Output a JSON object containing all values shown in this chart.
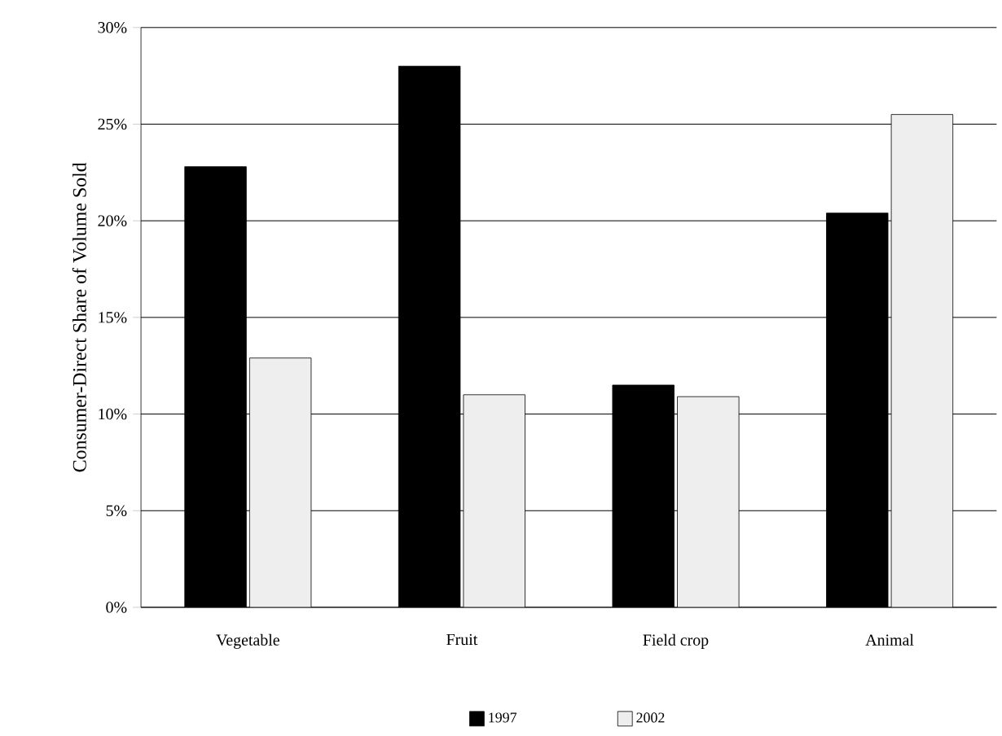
{
  "chart_data": {
    "type": "bar",
    "ylabel": "Consumer-Direct Share of Volume Sold",
    "categories": [
      "Vegetable",
      "Fruit",
      "Field crop",
      "Animal"
    ],
    "series": [
      {
        "name": "1997",
        "color": "#000000",
        "values": [
          22.8,
          28.0,
          11.5,
          20.4
        ]
      },
      {
        "name": "2002",
        "color": "#eeeeee",
        "values": [
          12.9,
          11.0,
          10.9,
          25.5
        ]
      }
    ],
    "ylim": [
      0,
      30
    ],
    "yticks": [
      {
        "value": 0,
        "label": "0%"
      },
      {
        "value": 5,
        "label": "5%"
      },
      {
        "value": 10,
        "label": "10%"
      },
      {
        "value": 15,
        "label": "15%"
      },
      {
        "value": 20,
        "label": "20%"
      },
      {
        "value": 25,
        "label": "25%"
      },
      {
        "value": 30,
        "label": "30%"
      }
    ],
    "grid": "y",
    "legend": "bottom"
  }
}
